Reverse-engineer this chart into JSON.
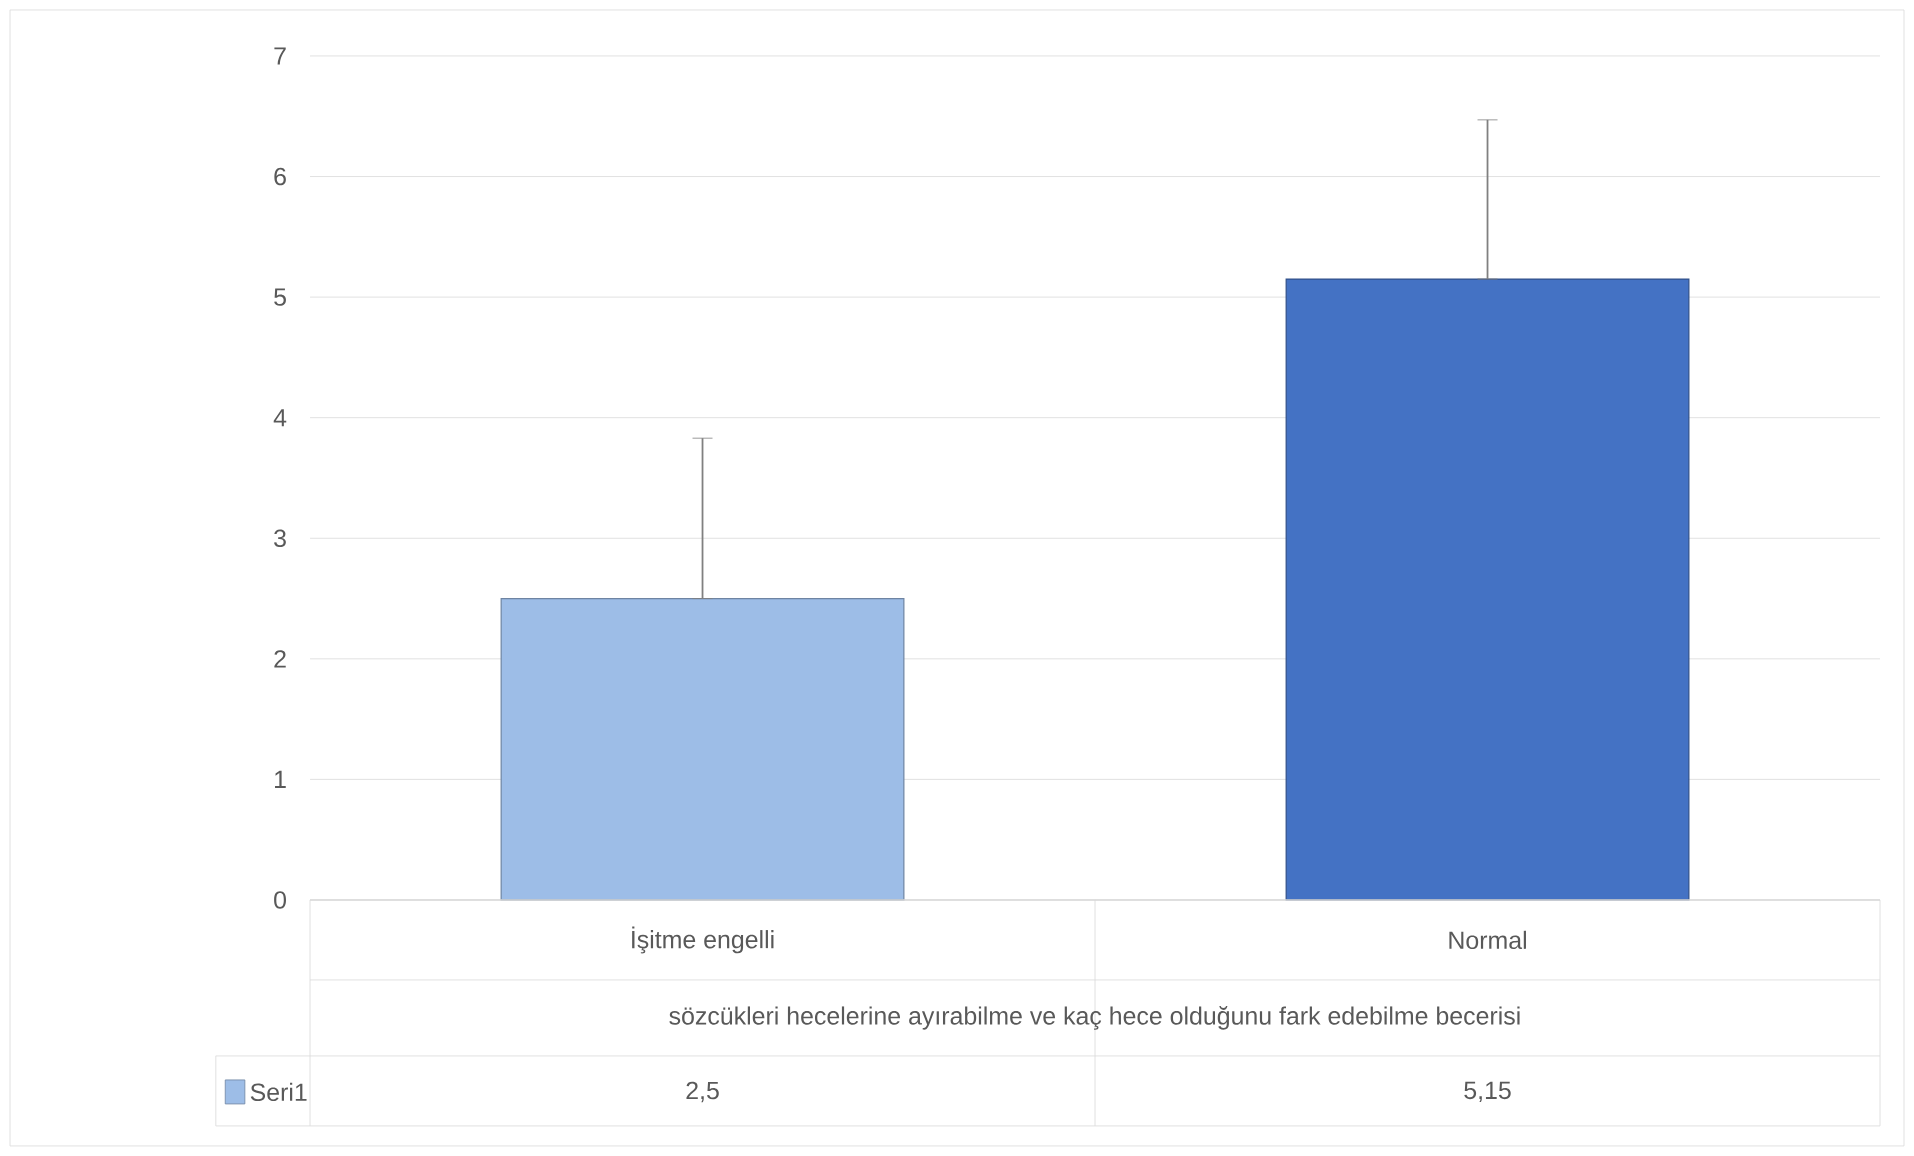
{
  "chart_data": {
    "type": "bar",
    "xlabel": "sözcükleri hecelerine ayırabilme ve kaç hece olduğunu fark edebilme becerisi",
    "categories": [
      "İşitme engelli",
      "Normal"
    ],
    "series": [
      {
        "name": "Seri1",
        "color": "#9dbde7",
        "colors": [
          "#9dbde7",
          "#4472c4"
        ],
        "values": [
          2.5,
          5.15
        ],
        "errors": [
          [
            2.5,
            3.83
          ],
          [
            5.15,
            6.47
          ]
        ],
        "value_labels": [
          "2,5",
          "5,15"
        ]
      }
    ],
    "ylim": [
      0,
      7
    ],
    "yticks": [
      0,
      1,
      2,
      3,
      4,
      5,
      6,
      7
    ],
    "grid": "y",
    "legend": "bottom",
    "data_labels": true
  }
}
